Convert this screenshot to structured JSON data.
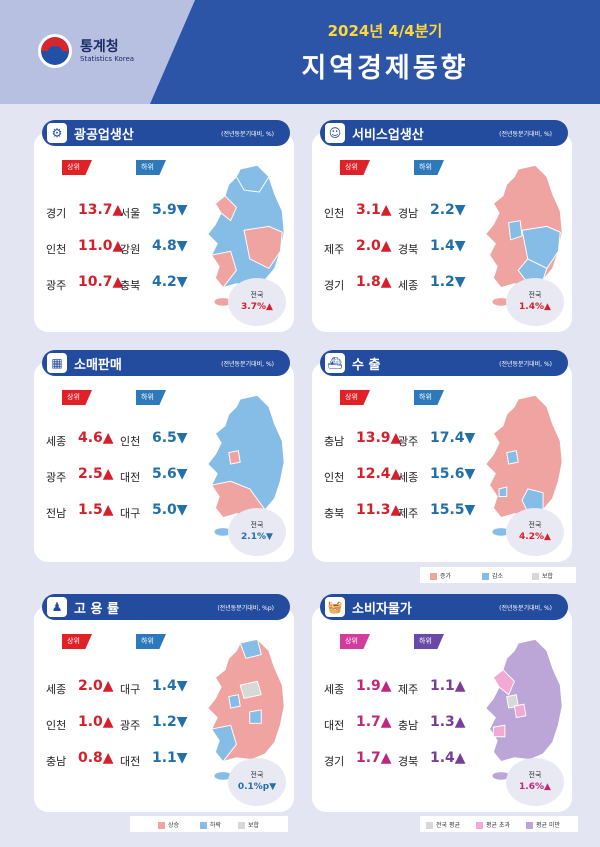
{
  "header": {
    "org_name": "통계청",
    "org_sub": "Statistics Korea",
    "period": "2024년 4/4분기",
    "title": "지역경제동향"
  },
  "labels": {
    "top": "상위",
    "bottom": "하위",
    "national": "전국"
  },
  "colors": {
    "increase": "#f0a4a1",
    "decrease": "#86bde6",
    "flat": "#d8d8d8",
    "cpi_avg": "#d8d8d8",
    "cpi_above": "#f2a9d3",
    "cpi_below": "#bca6d8",
    "header_blue": "#2d55a7"
  },
  "cards": {
    "mining": {
      "title": "광공업생산",
      "unit": "(전년동분기대비, %)",
      "icon": "factory-icon",
      "top": [
        {
          "region": "경기",
          "value": "13.7▲"
        },
        {
          "region": "인천",
          "value": "11.0▲"
        },
        {
          "region": "광주",
          "value": "10.7▲"
        }
      ],
      "bottom": [
        {
          "region": "서울",
          "value": "5.9▼"
        },
        {
          "region": "강원",
          "value": "4.8▼"
        },
        {
          "region": "충북",
          "value": "4.2▼"
        }
      ],
      "national": "3.7%▲"
    },
    "service": {
      "title": "서비스업생산",
      "unit": "(전년동분기대비, %)",
      "icon": "worker-icon",
      "top": [
        {
          "region": "인천",
          "value": "3.1▲"
        },
        {
          "region": "제주",
          "value": "2.0▲"
        },
        {
          "region": "경기",
          "value": "1.8▲"
        }
      ],
      "bottom": [
        {
          "region": "경남",
          "value": "2.2▼"
        },
        {
          "region": "경북",
          "value": "1.4▼"
        },
        {
          "region": "세종",
          "value": "1.2▼"
        }
      ],
      "national": "1.4%▲"
    },
    "retail": {
      "title": "소매판매",
      "unit": "(전년동분기대비, %)",
      "icon": "store-icon",
      "top": [
        {
          "region": "세종",
          "value": "4.6▲"
        },
        {
          "region": "광주",
          "value": "2.5▲"
        },
        {
          "region": "전남",
          "value": "1.5▲"
        }
      ],
      "bottom": [
        {
          "region": "인천",
          "value": "6.5▼"
        },
        {
          "region": "대전",
          "value": "5.6▼"
        },
        {
          "region": "대구",
          "value": "5.0▼"
        }
      ],
      "national": "2.1%▼"
    },
    "export": {
      "title": "수 출",
      "unit": "(전년동분기대비, %)",
      "icon": "ship-icon",
      "top": [
        {
          "region": "충남",
          "value": "13.9▲"
        },
        {
          "region": "인천",
          "value": "12.4▲"
        },
        {
          "region": "충북",
          "value": "11.3▲"
        }
      ],
      "bottom": [
        {
          "region": "광주",
          "value": "17.4▼"
        },
        {
          "region": "세종",
          "value": "15.6▼"
        },
        {
          "region": "제주",
          "value": "15.5▼"
        }
      ],
      "national": "4.2%▲"
    },
    "employment": {
      "title": "고 용 률",
      "unit": "(전년동분기대비, %p)",
      "icon": "person-icon",
      "top": [
        {
          "region": "세종",
          "value": "2.0▲"
        },
        {
          "region": "인천",
          "value": "1.0▲"
        },
        {
          "region": "충남",
          "value": "0.8▲"
        }
      ],
      "bottom": [
        {
          "region": "대구",
          "value": "1.4▼"
        },
        {
          "region": "광주",
          "value": "1.2▼"
        },
        {
          "region": "대전",
          "value": "1.1▼"
        }
      ],
      "national": "0.1%p▼"
    },
    "cpi": {
      "title": "소비자물가",
      "unit": "(전년동분기대비, %)",
      "icon": "basket-icon",
      "top": [
        {
          "region": "세종",
          "value": "1.9▲"
        },
        {
          "region": "대전",
          "value": "1.7▲"
        },
        {
          "region": "경기",
          "value": "1.7▲"
        }
      ],
      "bottom": [
        {
          "region": "제주",
          "value": "1.1▲"
        },
        {
          "region": "충남",
          "value": "1.3▲"
        },
        {
          "region": "경북",
          "value": "1.4▲"
        }
      ],
      "national": "1.6%▲"
    }
  },
  "legend_export": {
    "increase": "증가",
    "decrease": "감소",
    "flat": "보합"
  },
  "legend_employment": {
    "increase": "상승",
    "decrease": "하락",
    "flat": "보합"
  },
  "legend_cpi": {
    "avg": "전국 평균",
    "above": "평균 초과",
    "below": "평균 미만"
  }
}
